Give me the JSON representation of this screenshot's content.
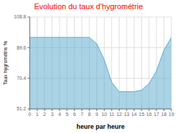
{
  "chart_data": {
    "type": "area",
    "title": "Evolution du taux d'hygrométrie",
    "xlabel": "heure par heure",
    "ylabel": "Taux hygrométrie %",
    "color": "#55aacc",
    "x": [
      0,
      1,
      2,
      3,
      4,
      5,
      6,
      7,
      8,
      9,
      10,
      11,
      12,
      13,
      14,
      15,
      16,
      17,
      18,
      19
    ],
    "values": [
      96,
      96,
      96,
      96,
      96,
      96,
      96,
      96,
      96,
      92,
      82,
      68,
      62,
      62,
      62,
      63,
      67,
      75,
      88,
      96
    ],
    "xlim": [
      0,
      19
    ],
    "xticks": [
      0,
      1,
      2,
      3,
      4,
      5,
      6,
      7,
      8,
      9,
      10,
      11,
      12,
      13,
      14,
      15,
      16,
      17,
      18,
      19
    ],
    "ylim": [
      51.2,
      108.8
    ],
    "yticks": [
      51.2,
      70.4,
      89.6,
      108.8
    ],
    "grid": true
  }
}
